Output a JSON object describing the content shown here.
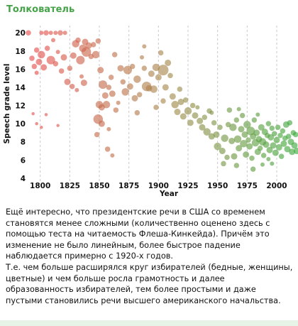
{
  "channel": {
    "name": "Толкователь"
  },
  "chart_data": {
    "type": "scatter",
    "title": "",
    "xlabel": "Year",
    "ylabel": "Speech grade level",
    "xlim": [
      1790,
      2018
    ],
    "ylim": [
      3.6,
      20.8
    ],
    "x_ticks": [
      1800,
      1825,
      1850,
      1875,
      1900,
      1925,
      1950,
      1975,
      2000
    ],
    "y_ticks": [
      4,
      6,
      8,
      10,
      12,
      14,
      16,
      18,
      20
    ],
    "grid": "vertical dashed",
    "legend": "none",
    "colors": {
      "high": "#e84a4a",
      "mid": "#a8864a",
      "low": "#3aa83a"
    },
    "points": [
      {
        "x": 1790,
        "y": 20.0,
        "s": 5
      },
      {
        "x": 1793,
        "y": 17.2,
        "s": 5
      },
      {
        "x": 1797,
        "y": 18.1,
        "s": 5
      },
      {
        "x": 1801,
        "y": 20.0,
        "s": 4
      },
      {
        "x": 1805,
        "y": 20.0,
        "s": 5
      },
      {
        "x": 1809,
        "y": 20.0,
        "s": 4
      },
      {
        "x": 1813,
        "y": 20.0,
        "s": 4
      },
      {
        "x": 1817,
        "y": 20.0,
        "s": 5
      },
      {
        "x": 1821,
        "y": 20.0,
        "s": 4
      },
      {
        "x": 1795,
        "y": 16.3,
        "s": 5
      },
      {
        "x": 1797,
        "y": 15.6,
        "s": 4
      },
      {
        "x": 1799,
        "y": 16.8,
        "s": 6
      },
      {
        "x": 1801,
        "y": 17.6,
        "s": 7
      },
      {
        "x": 1803,
        "y": 16.2,
        "s": 6
      },
      {
        "x": 1806,
        "y": 18.3,
        "s": 5
      },
      {
        "x": 1809,
        "y": 17.0,
        "s": 8
      },
      {
        "x": 1811,
        "y": 19.2,
        "s": 4
      },
      {
        "x": 1813,
        "y": 16.6,
        "s": 5
      },
      {
        "x": 1815,
        "y": 17.9,
        "s": 4
      },
      {
        "x": 1818,
        "y": 15.8,
        "s": 5
      },
      {
        "x": 1820,
        "y": 17.3,
        "s": 6
      },
      {
        "x": 1794,
        "y": 11.1,
        "s": 3
      },
      {
        "x": 1797,
        "y": 10.0,
        "s": 3
      },
      {
        "x": 1801,
        "y": 9.6,
        "s": 3
      },
      {
        "x": 1805,
        "y": 11.0,
        "s": 3
      },
      {
        "x": 1815,
        "y": 9.8,
        "s": 3
      },
      {
        "x": 1823,
        "y": 14.6,
        "s": 6
      },
      {
        "x": 1825,
        "y": 16.1,
        "s": 5
      },
      {
        "x": 1828,
        "y": 17.5,
        "s": 6
      },
      {
        "x": 1830,
        "y": 18.8,
        "s": 7
      },
      {
        "x": 1832,
        "y": 19.2,
        "s": 5
      },
      {
        "x": 1834,
        "y": 17.0,
        "s": 8
      },
      {
        "x": 1836,
        "y": 18.3,
        "s": 7
      },
      {
        "x": 1838,
        "y": 19.0,
        "s": 6
      },
      {
        "x": 1839,
        "y": 17.9,
        "s": 9
      },
      {
        "x": 1841,
        "y": 18.6,
        "s": 6
      },
      {
        "x": 1843,
        "y": 17.4,
        "s": 5
      },
      {
        "x": 1845,
        "y": 18.7,
        "s": 5
      },
      {
        "x": 1827,
        "y": 14.1,
        "s": 5
      },
      {
        "x": 1831,
        "y": 13.7,
        "s": 4
      },
      {
        "x": 1835,
        "y": 15.2,
        "s": 4
      },
      {
        "x": 1837,
        "y": 14.5,
        "s": 6
      },
      {
        "x": 1847,
        "y": 17.6,
        "s": 7
      },
      {
        "x": 1849,
        "y": 19.1,
        "s": 5
      },
      {
        "x": 1851,
        "y": 15.9,
        "s": 6
      },
      {
        "x": 1853,
        "y": 14.3,
        "s": 8
      },
      {
        "x": 1855,
        "y": 13.1,
        "s": 6
      },
      {
        "x": 1856,
        "y": 12.1,
        "s": 7
      },
      {
        "x": 1858,
        "y": 14.0,
        "s": 5
      },
      {
        "x": 1860,
        "y": 15.1,
        "s": 5
      },
      {
        "x": 1861,
        "y": 13.3,
        "s": 6
      },
      {
        "x": 1863,
        "y": 17.6,
        "s": 5
      },
      {
        "x": 1864,
        "y": 11.5,
        "s": 5
      },
      {
        "x": 1866,
        "y": 12.3,
        "s": 4
      },
      {
        "x": 1850,
        "y": 12.1,
        "s": 7
      },
      {
        "x": 1852,
        "y": 11.8,
        "s": 6
      },
      {
        "x": 1849,
        "y": 10.5,
        "s": 9
      },
      {
        "x": 1852,
        "y": 10.0,
        "s": 6
      },
      {
        "x": 1858,
        "y": 9.4,
        "s": 4
      },
      {
        "x": 1848,
        "y": 8.8,
        "s": 5
      },
      {
        "x": 1857,
        "y": 7.2,
        "s": 5
      },
      {
        "x": 1861,
        "y": 6.5,
        "s": 4
      },
      {
        "x": 1868,
        "y": 16.1,
        "s": 6
      },
      {
        "x": 1870,
        "y": 14.6,
        "s": 5
      },
      {
        "x": 1872,
        "y": 13.5,
        "s": 7
      },
      {
        "x": 1874,
        "y": 15.9,
        "s": 8
      },
      {
        "x": 1876,
        "y": 14.1,
        "s": 6
      },
      {
        "x": 1878,
        "y": 16.3,
        "s": 5
      },
      {
        "x": 1880,
        "y": 12.8,
        "s": 6
      },
      {
        "x": 1882,
        "y": 14.9,
        "s": 7
      },
      {
        "x": 1884,
        "y": 13.2,
        "s": 5
      },
      {
        "x": 1886,
        "y": 17.3,
        "s": 4
      },
      {
        "x": 1888,
        "y": 16.1,
        "s": 5
      },
      {
        "x": 1890,
        "y": 14.1,
        "s": 9
      },
      {
        "x": 1892,
        "y": 13.9,
        "s": 6
      },
      {
        "x": 1894,
        "y": 15.5,
        "s": 6
      },
      {
        "x": 1896,
        "y": 13.8,
        "s": 7
      },
      {
        "x": 1898,
        "y": 16.2,
        "s": 7
      },
      {
        "x": 1900,
        "y": 15.1,
        "s": 6
      },
      {
        "x": 1902,
        "y": 17.8,
        "s": 5
      },
      {
        "x": 1904,
        "y": 15.9,
        "s": 10
      },
      {
        "x": 1906,
        "y": 14.0,
        "s": 6
      },
      {
        "x": 1908,
        "y": 16.7,
        "s": 6
      },
      {
        "x": 1910,
        "y": 15.3,
        "s": 5
      },
      {
        "x": 1904,
        "y": 12.5,
        "s": 5
      },
      {
        "x": 1898,
        "y": 11.8,
        "s": 5
      },
      {
        "x": 1888,
        "y": 18.5,
        "s": 4
      },
      {
        "x": 1882,
        "y": 11.2,
        "s": 5
      },
      {
        "x": 1912,
        "y": 13.0,
        "s": 6
      },
      {
        "x": 1914,
        "y": 12.1,
        "s": 7
      },
      {
        "x": 1916,
        "y": 11.3,
        "s": 6
      },
      {
        "x": 1918,
        "y": 13.8,
        "s": 5
      },
      {
        "x": 1919,
        "y": 12.4,
        "s": 6
      },
      {
        "x": 1921,
        "y": 10.8,
        "s": 6
      },
      {
        "x": 1923,
        "y": 12.6,
        "s": 5
      },
      {
        "x": 1925,
        "y": 11.4,
        "s": 7
      },
      {
        "x": 1927,
        "y": 10.1,
        "s": 6
      },
      {
        "x": 1929,
        "y": 12.0,
        "s": 5
      },
      {
        "x": 1931,
        "y": 10.9,
        "s": 6
      },
      {
        "x": 1933,
        "y": 11.8,
        "s": 4
      },
      {
        "x": 1935,
        "y": 10.3,
        "s": 6
      },
      {
        "x": 1937,
        "y": 9.6,
        "s": 6
      },
      {
        "x": 1939,
        "y": 10.7,
        "s": 5
      },
      {
        "x": 1941,
        "y": 9.1,
        "s": 7
      },
      {
        "x": 1943,
        "y": 11.4,
        "s": 5
      },
      {
        "x": 1945,
        "y": 8.6,
        "s": 6
      },
      {
        "x": 1947,
        "y": 10.1,
        "s": 5
      },
      {
        "x": 1949,
        "y": 8.8,
        "s": 6
      },
      {
        "x": 1950,
        "y": 7.5,
        "s": 7
      },
      {
        "x": 1952,
        "y": 9.6,
        "s": 5
      },
      {
        "x": 1954,
        "y": 7.0,
        "s": 6
      },
      {
        "x": 1956,
        "y": 8.4,
        "s": 7
      },
      {
        "x": 1958,
        "y": 6.3,
        "s": 5
      },
      {
        "x": 1959,
        "y": 9.9,
        "s": 5
      },
      {
        "x": 1960,
        "y": 11.5,
        "s": 5
      },
      {
        "x": 1962,
        "y": 8.1,
        "s": 6
      },
      {
        "x": 1963,
        "y": 9.6,
        "s": 7
      },
      {
        "x": 1964,
        "y": 6.4,
        "s": 6
      },
      {
        "x": 1966,
        "y": 10.4,
        "s": 5
      },
      {
        "x": 1967,
        "y": 8.3,
        "s": 7
      },
      {
        "x": 1968,
        "y": 7.3,
        "s": 6
      },
      {
        "x": 1970,
        "y": 9.4,
        "s": 6
      },
      {
        "x": 1971,
        "y": 10.9,
        "s": 5
      },
      {
        "x": 1972,
        "y": 7.8,
        "s": 7
      },
      {
        "x": 1973,
        "y": 8.8,
        "s": 6
      },
      {
        "x": 1974,
        "y": 6.6,
        "s": 6
      },
      {
        "x": 1975,
        "y": 9.9,
        "s": 7
      },
      {
        "x": 1976,
        "y": 8.2,
        "s": 5
      },
      {
        "x": 1977,
        "y": 7.5,
        "s": 6
      },
      {
        "x": 1978,
        "y": 9.2,
        "s": 8
      },
      {
        "x": 1979,
        "y": 6.2,
        "s": 5
      },
      {
        "x": 1980,
        "y": 8.6,
        "s": 6
      },
      {
        "x": 1981,
        "y": 10.4,
        "s": 5
      },
      {
        "x": 1982,
        "y": 7.9,
        "s": 7
      },
      {
        "x": 1983,
        "y": 9.0,
        "s": 6
      },
      {
        "x": 1984,
        "y": 6.9,
        "s": 6
      },
      {
        "x": 1985,
        "y": 8.3,
        "s": 6
      },
      {
        "x": 1986,
        "y": 7.3,
        "s": 5
      },
      {
        "x": 1987,
        "y": 9.6,
        "s": 6
      },
      {
        "x": 1988,
        "y": 8.0,
        "s": 7
      },
      {
        "x": 1989,
        "y": 6.5,
        "s": 5
      },
      {
        "x": 1990,
        "y": 9.1,
        "s": 6
      },
      {
        "x": 1991,
        "y": 7.7,
        "s": 6
      },
      {
        "x": 1992,
        "y": 8.7,
        "s": 5
      },
      {
        "x": 1993,
        "y": 10.0,
        "s": 5
      },
      {
        "x": 1994,
        "y": 7.1,
        "s": 6
      },
      {
        "x": 1995,
        "y": 8.5,
        "s": 6
      },
      {
        "x": 1996,
        "y": 9.5,
        "s": 5
      },
      {
        "x": 1997,
        "y": 7.6,
        "s": 6
      },
      {
        "x": 1998,
        "y": 8.9,
        "s": 5
      },
      {
        "x": 1999,
        "y": 6.8,
        "s": 6
      },
      {
        "x": 2000,
        "y": 8.2,
        "s": 6
      },
      {
        "x": 2001,
        "y": 9.6,
        "s": 5
      },
      {
        "x": 2002,
        "y": 7.4,
        "s": 6
      },
      {
        "x": 2003,
        "y": 8.7,
        "s": 5
      },
      {
        "x": 2004,
        "y": 6.4,
        "s": 5
      },
      {
        "x": 2005,
        "y": 9.2,
        "s": 5
      },
      {
        "x": 2006,
        "y": 7.8,
        "s": 6
      },
      {
        "x": 2007,
        "y": 8.4,
        "s": 5
      },
      {
        "x": 2008,
        "y": 9.9,
        "s": 6
      },
      {
        "x": 2009,
        "y": 7.2,
        "s": 6
      },
      {
        "x": 2010,
        "y": 8.6,
        "s": 5
      },
      {
        "x": 2011,
        "y": 10.1,
        "s": 5
      },
      {
        "x": 2012,
        "y": 8.0,
        "s": 6
      },
      {
        "x": 2013,
        "y": 6.9,
        "s": 6
      },
      {
        "x": 2014,
        "y": 9.0,
        "s": 5
      },
      {
        "x": 2015,
        "y": 7.6,
        "s": 6
      },
      {
        "x": 2016,
        "y": 8.8,
        "s": 5
      },
      {
        "x": 2017,
        "y": 7.0,
        "s": 6
      },
      {
        "x": 1955,
        "y": 5.6,
        "s": 5
      },
      {
        "x": 1966,
        "y": 5.4,
        "s": 5
      },
      {
        "x": 1980,
        "y": 5.0,
        "s": 5
      },
      {
        "x": 1988,
        "y": 5.5,
        "s": 4
      },
      {
        "x": 1996,
        "y": 5.6,
        "s": 4
      },
      {
        "x": 1993,
        "y": 6.1,
        "s": 4
      },
      {
        "x": 1945,
        "y": 11.2,
        "s": 4
      },
      {
        "x": 1968,
        "y": 11.6,
        "s": 4
      },
      {
        "x": 1984,
        "y": 11.0,
        "s": 4
      }
    ]
  },
  "post": {
    "paragraph1": "Ещё интересно, что президентские речи в США со временем становятся менее сложными (количественно оценено здесь с помощью теста на читаемость Флеша-Кинкейда). Причём это изменение не было линейным, более быстрое падение наблюдается примерно с 1920-х годов.",
    "paragraph2": "Т.е. чем больше расширялся круг избирателей (бедные, женщины, цветные) и чем больше росла грамотность и далее образованность избирателей, тем более простыми и даже пустыми становились речи высшего американского начальства."
  }
}
